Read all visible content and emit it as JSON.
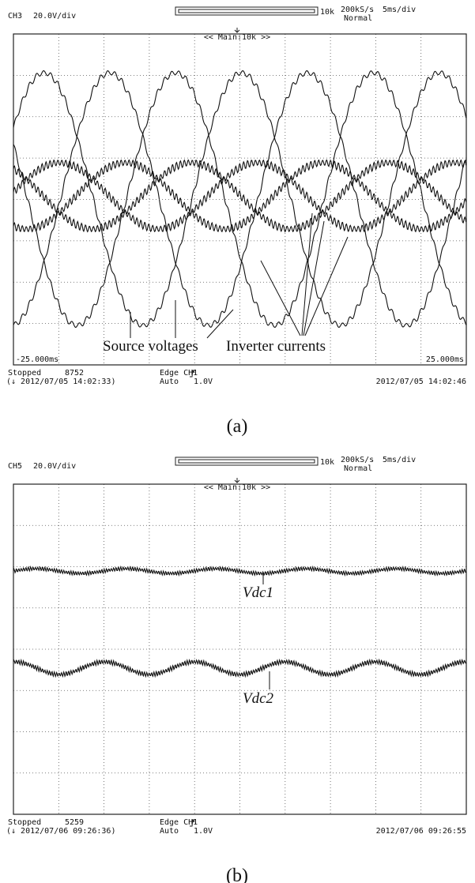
{
  "panels": [
    {
      "header": {
        "channel": "CH3",
        "scale": "20.0V/div",
        "record": "10k",
        "rate": "200kS/s",
        "timebase": "5ms/div",
        "mode": "Normal",
        "zoom": "<< Main:10k >>"
      },
      "time_left": "-25.000ms",
      "time_right": "25.000ms",
      "annotations": [
        "Source voltages",
        "Inverter currents"
      ],
      "footer": {
        "state": "Stopped",
        "count": "8752",
        "trigger_time": "(↓ 2012/07/05 14:02:33)",
        "trigger": "Edge CH1",
        "trigger_mode": "Auto",
        "level": "1.0V",
        "timestamp": "2012/07/05 14:02:46"
      },
      "caption": "(a)"
    },
    {
      "header": {
        "channel": "CH5",
        "scale": "20.0V/div",
        "record": "10k",
        "rate": "200kS/s",
        "timebase": "5ms/div",
        "mode": "Normal",
        "zoom": "<< Main:10k >>"
      },
      "annotations": [
        "Vdc1",
        "Vdc2"
      ],
      "footer": {
        "state": "Stopped",
        "count": "5259",
        "trigger_time": "(↓ 2012/07/06 09:26:36)",
        "trigger": "Edge CH1",
        "trigger_mode": "Auto",
        "level": "1.0V",
        "timestamp": "2012/07/06 09:26:55"
      },
      "caption": "(b)"
    }
  ]
}
